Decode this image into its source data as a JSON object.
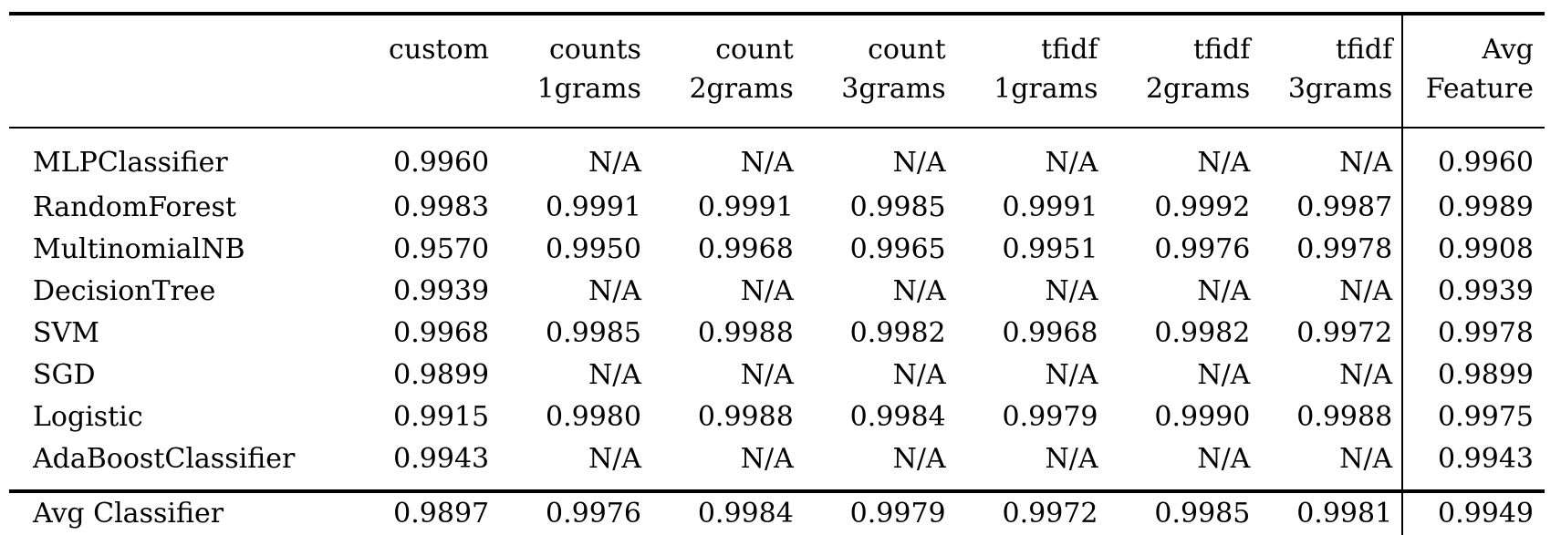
{
  "table": {
    "header": {
      "row_label": "",
      "columns": [
        {
          "line1": "custom",
          "line2": ""
        },
        {
          "line1": "counts",
          "line2": "1grams"
        },
        {
          "line1": "count",
          "line2": "2grams"
        },
        {
          "line1": "count",
          "line2": "3grams"
        },
        {
          "line1": "tfidf",
          "line2": "1grams"
        },
        {
          "line1": "tfidf",
          "line2": "2grams"
        },
        {
          "line1": "tfidf",
          "line2": "3grams"
        },
        {
          "line1": "Avg",
          "line2": "Feature"
        }
      ]
    },
    "rows": [
      {
        "label": "MLPClassifier",
        "values": [
          "0.9960",
          "N/A",
          "N/A",
          "N/A",
          "N/A",
          "N/A",
          "N/A",
          "0.9960"
        ]
      },
      {
        "label": "RandomForest",
        "values": [
          "0.9983",
          "0.9991",
          "0.9991",
          "0.9985",
          "0.9991",
          "0.9992",
          "0.9987",
          "0.9989"
        ]
      },
      {
        "label": "MultinomialNB",
        "values": [
          "0.9570",
          "0.9950",
          "0.9968",
          "0.9965",
          "0.9951",
          "0.9976",
          "0.9978",
          "0.9908"
        ]
      },
      {
        "label": "DecisionTree",
        "values": [
          "0.9939",
          "N/A",
          "N/A",
          "N/A",
          "N/A",
          "N/A",
          "N/A",
          "0.9939"
        ]
      },
      {
        "label": "SVM",
        "values": [
          "0.9968",
          "0.9985",
          "0.9988",
          "0.9982",
          "0.9968",
          "0.9982",
          "0.9972",
          "0.9978"
        ]
      },
      {
        "label": "SGD",
        "values": [
          "0.9899",
          "N/A",
          "N/A",
          "N/A",
          "N/A",
          "N/A",
          "N/A",
          "0.9899"
        ]
      },
      {
        "label": "Logistic",
        "values": [
          "0.9915",
          "0.9980",
          "0.9988",
          "0.9984",
          "0.9979",
          "0.9990",
          "0.9988",
          "0.9975"
        ]
      },
      {
        "label": "AdaBoostClassifier",
        "values": [
          "0.9943",
          "N/A",
          "N/A",
          "N/A",
          "N/A",
          "N/A",
          "N/A",
          "0.9943"
        ]
      }
    ],
    "footer": {
      "label": "Avg Classifier",
      "values": [
        "0.9897",
        "0.9976",
        "0.9984",
        "0.9979",
        "0.9972",
        "0.9985",
        "0.9981",
        "0.9949"
      ]
    }
  }
}
